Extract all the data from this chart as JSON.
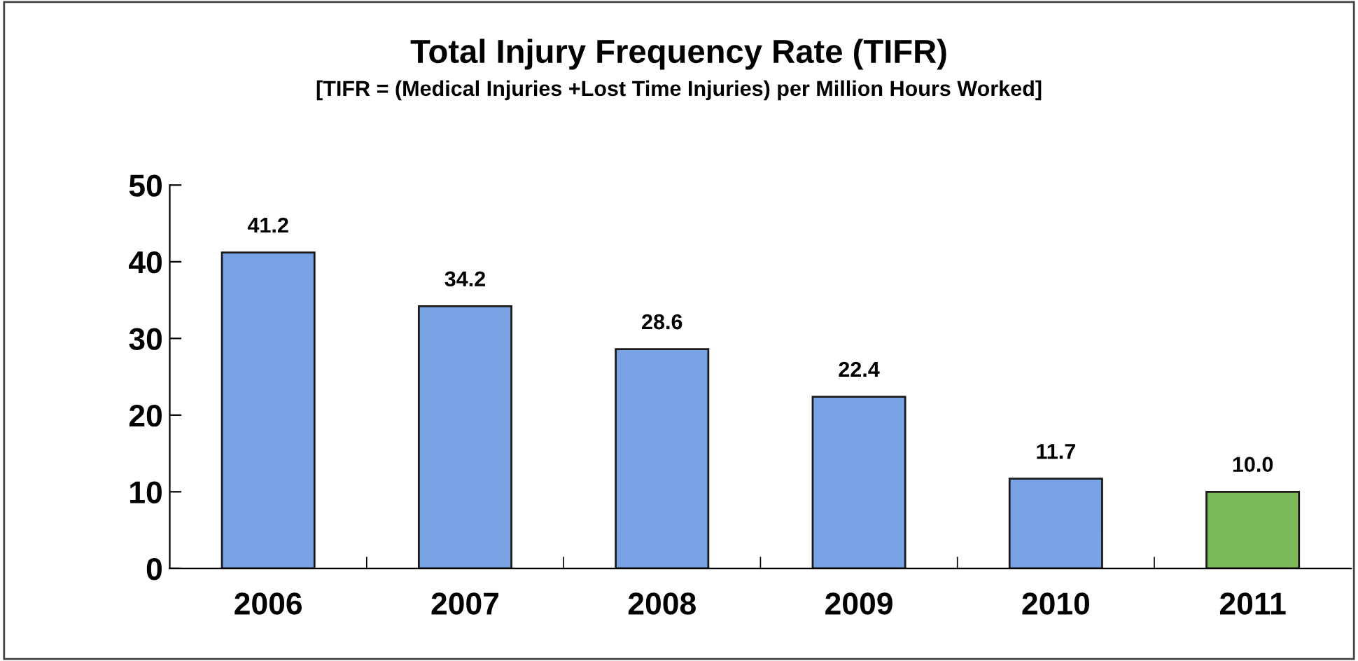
{
  "chart_data": {
    "type": "bar",
    "title": "Total Injury Frequency Rate (TIFR)",
    "subtitle": "[TIFR = (Medical Injuries +Lost Time Injuries) per Million Hours Worked]",
    "categories": [
      "2006",
      "2007",
      "2008",
      "2009",
      "2010",
      "2011"
    ],
    "values": [
      41.2,
      34.2,
      28.6,
      22.4,
      11.7,
      10.0
    ],
    "colors": [
      "#7aa3e6",
      "#7aa3e6",
      "#7aa3e6",
      "#7aa3e6",
      "#7aa3e6",
      "#7cba5c"
    ],
    "value_labels": [
      "41.2",
      "34.2",
      "28.6",
      "22.4",
      "11.7",
      "10.0"
    ],
    "ylim": [
      0,
      50
    ],
    "yticks": [
      0,
      10,
      20,
      30,
      40,
      50
    ],
    "grid": false,
    "legend": false
  }
}
